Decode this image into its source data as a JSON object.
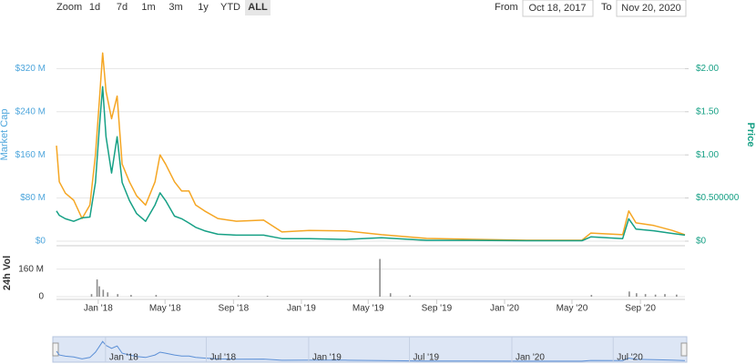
{
  "controls": {
    "zoom_label": "Zoom",
    "zoom_buttons": [
      "1d",
      "7d",
      "1m",
      "3m",
      "1y",
      "YTD",
      "ALL"
    ],
    "from_label": "From",
    "from_date": "Oct 18, 2017",
    "to_label": "To",
    "to_date": "Nov 20, 2020"
  },
  "chart_data": {
    "type": "line",
    "y_label": "Market Cap",
    "y2_label": "Price",
    "x": [
      "2017-10-18",
      "2017-10-23",
      "2017-11-03",
      "2017-11-18",
      "2017-12-03",
      "2017-12-17",
      "2017-12-27",
      "2018-01-03",
      "2018-01-09",
      "2018-01-15",
      "2018-01-25",
      "2018-02-04",
      "2018-02-13",
      "2018-02-26",
      "2018-03-11",
      "2018-03-27",
      "2018-04-13",
      "2018-04-22",
      "2018-05-02",
      "2018-05-18",
      "2018-05-31",
      "2018-06-13",
      "2018-06-25",
      "2018-07-11",
      "2018-08-04",
      "2018-09-06",
      "2018-10-25",
      "2018-11-27",
      "2019-01-15",
      "2019-03-21",
      "2019-05-25",
      "2019-08-14",
      "2019-11-04",
      "2020-02-10",
      "2020-05-19",
      "2020-06-04",
      "2020-07-31",
      "2020-08-11",
      "2020-08-24",
      "2020-09-25",
      "2020-10-28",
      "2020-11-20"
    ],
    "series": [
      {
        "color": "#f5a623",
        "axis": "y",
        "values": [
          177000000,
          110000000,
          89000000,
          76000000,
          42000000,
          67000000,
          160000000,
          261000000,
          349000000,
          278000000,
          227000000,
          269000000,
          143000000,
          110000000,
          84000000,
          67000000,
          110000000,
          160000000,
          143000000,
          110000000,
          93000000,
          93000000,
          67000000,
          56000000,
          42000000,
          37000000,
          39000000,
          17000000,
          20000000,
          19000000,
          12000000,
          5000000,
          3400000,
          1700000,
          1700000,
          15000000,
          12000000,
          56000000,
          34000000,
          29000000,
          20000000,
          12000000
        ]
      },
      {
        "color": "#16a085",
        "axis": "y2",
        "values": [
          0.35,
          0.3,
          0.26,
          0.23,
          0.27,
          0.28,
          0.68,
          1.32,
          1.79,
          1.21,
          0.79,
          1.21,
          0.68,
          0.47,
          0.32,
          0.23,
          0.42,
          0.56,
          0.47,
          0.29,
          0.26,
          0.21,
          0.16,
          0.12,
          0.08,
          0.07,
          0.07,
          0.03,
          0.03,
          0.02,
          0.04,
          0.01,
          0.01,
          0.005,
          0.005,
          0.05,
          0.03,
          0.26,
          0.14,
          0.12,
          0.09,
          0.07
        ]
      }
    ],
    "xlim": [
      "2017-10-18",
      "2020-11-20"
    ],
    "xticks": [
      {
        "value": "2018-01-01",
        "label": "Jan '18"
      },
      {
        "value": "2018-05-01",
        "label": "May '18"
      },
      {
        "value": "2018-09-01",
        "label": "Sep '18"
      },
      {
        "value": "2019-01-01",
        "label": "Jan '19"
      },
      {
        "value": "2019-05-01",
        "label": "May '19"
      },
      {
        "value": "2019-09-01",
        "label": "Sep '19"
      },
      {
        "value": "2020-01-01",
        "label": "Jan '20"
      },
      {
        "value": "2020-05-01",
        "label": "May '20"
      },
      {
        "value": "2020-09-01",
        "label": "Sep '20"
      }
    ],
    "ylim": [
      0,
      400000000
    ],
    "yticks": [
      {
        "value": 0,
        "label": "$0"
      },
      {
        "value": 80000000,
        "label": "$80 M"
      },
      {
        "value": 160000000,
        "label": "$160 M"
      },
      {
        "value": 240000000,
        "label": "$240 M"
      },
      {
        "value": 320000000,
        "label": "$320 M"
      }
    ],
    "y2lim": [
      0,
      2.5
    ],
    "y2ticks": [
      {
        "value": 0,
        "label": "$0"
      },
      {
        "value": 0.5,
        "label": "$0.500000"
      },
      {
        "value": 1,
        "label": "$1.00"
      },
      {
        "value": 1.5,
        "label": "$1.50"
      },
      {
        "value": 2,
        "label": "$2.00"
      }
    ],
    "grid": true,
    "volume": {
      "label": "24h Vol",
      "color": "#8c8c8c",
      "x": [
        "2017-12-20",
        "2017-12-30",
        "2018-01-03",
        "2018-01-10",
        "2018-01-18",
        "2018-02-05",
        "2018-03-01",
        "2018-04-15",
        "2018-09-10",
        "2018-11-01",
        "2019-05-22",
        "2019-06-10",
        "2019-07-15",
        "2020-06-05",
        "2020-08-12",
        "2020-08-25",
        "2020-09-10",
        "2020-09-28",
        "2020-10-15",
        "2020-11-05"
      ],
      "values": [
        15000000,
        100000000,
        60000000,
        40000000,
        25000000,
        15000000,
        10000000,
        10000000,
        6000000,
        5000000,
        219000000,
        20000000,
        8000000,
        10000000,
        30000000,
        20000000,
        15000000,
        12000000,
        15000000,
        12000000
      ],
      "ylim": [
        0,
        280000000
      ],
      "yticks": [
        0,
        {
          "value": 160000000,
          "label": "160 M"
        }
      ]
    },
    "navigator": {
      "xticks": [
        {
          "value": "2018-01-01",
          "label": "Jan '18"
        },
        {
          "value": "2018-07-01",
          "label": "Jul '18"
        },
        {
          "value": "2019-01-01",
          "label": "Jan '19"
        },
        {
          "value": "2019-07-01",
          "label": "Jul '19"
        },
        {
          "value": "2020-01-01",
          "label": "Jan '20"
        },
        {
          "value": "2020-07-01",
          "label": "Jul '20"
        }
      ]
    }
  }
}
